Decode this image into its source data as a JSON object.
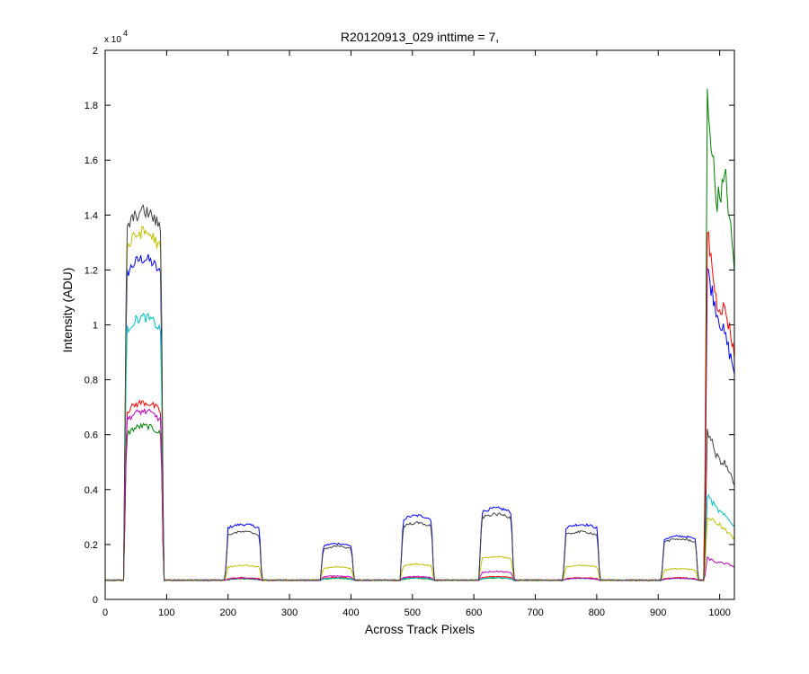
{
  "chart_data": {
    "type": "line",
    "title": "R20120913_029 inttime = 7,",
    "xlabel": "Across Track Pixels",
    "ylabel": "Intensity (ADU)",
    "y_exponent_label": "x 10",
    "y_exponent_power": "4",
    "xlim": [
      0,
      1024
    ],
    "ylim": [
      0,
      20000
    ],
    "xticks": [
      0,
      100,
      200,
      300,
      400,
      500,
      600,
      700,
      800,
      900,
      1000
    ],
    "yticks": [
      0,
      2000,
      4000,
      6000,
      8000,
      10000,
      12000,
      14000,
      16000,
      18000,
      20000
    ],
    "ytick_labels": [
      "0",
      "0.2",
      "0.4",
      "0.6",
      "0.8",
      "1",
      "1.2",
      "1.4",
      "1.6",
      "1.8",
      "2"
    ],
    "grid": false,
    "legend": "none",
    "baseline": 700,
    "segments": [
      {
        "start": 30,
        "end": 95
      },
      {
        "start": 195,
        "end": 255
      },
      {
        "start": 350,
        "end": 405
      },
      {
        "start": 480,
        "end": 535
      },
      {
        "start": 608,
        "end": 665
      },
      {
        "start": 745,
        "end": 805
      },
      {
        "start": 905,
        "end": 965
      }
    ],
    "series": [
      {
        "color": "#0000ff",
        "plateaus": [
          11600,
          2550,
          1900,
          2850,
          3100,
          2550,
          2150
        ],
        "edge_values": [
          12000,
          10500,
          9500,
          8300
        ]
      },
      {
        "color": "#008000",
        "plateaus": [
          5900,
          700,
          720,
          720,
          730,
          720,
          720
        ],
        "edge_values": [
          18300,
          14500,
          15300,
          12000
        ]
      },
      {
        "color": "#ff0000",
        "plateaus": [
          6700,
          740,
          750,
          750,
          780,
          740,
          740
        ],
        "edge_values": [
          13500,
          10800,
          10500,
          9000
        ]
      },
      {
        "color": "#00bfbf",
        "plateaus": [
          9600,
          720,
          730,
          730,
          740,
          720,
          720
        ],
        "edge_values": [
          3800,
          3300,
          3000,
          2700
        ]
      },
      {
        "color": "#bf00bf",
        "plateaus": [
          6400,
          720,
          800,
          780,
          950,
          720,
          720
        ],
        "edge_values": [
          1500,
          1350,
          1300,
          1200
        ]
      },
      {
        "color": "#bfbf00",
        "plateaus": [
          12500,
          1150,
          1100,
          1200,
          1450,
          1150,
          1050
        ],
        "edge_values": [
          3000,
          2800,
          2500,
          2200
        ]
      },
      {
        "color": "#404040",
        "plateaus": [
          13200,
          2300,
          1800,
          2600,
          2900,
          2300,
          2050
        ],
        "edge_values": [
          6200,
          5200,
          4900,
          4200
        ]
      }
    ]
  }
}
